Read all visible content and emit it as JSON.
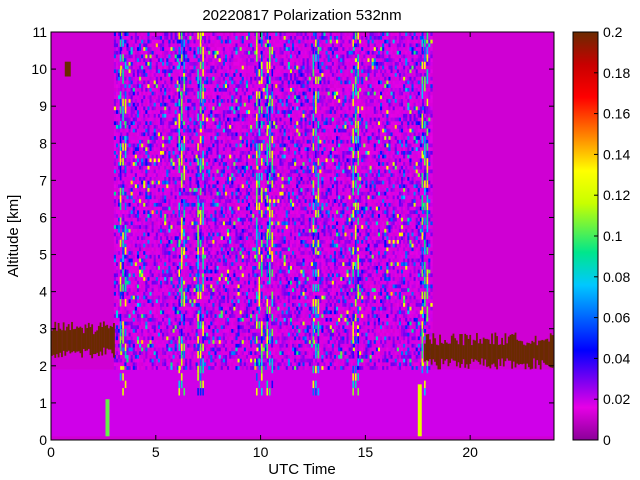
{
  "chart_data": {
    "type": "heatmap",
    "title": "20220817 Polarization 532nm",
    "xlabel": "UTC Time",
    "ylabel": "Altitude [km]",
    "xlim": [
      0,
      24
    ],
    "ylim": [
      0,
      11
    ],
    "xticks": [
      0,
      5,
      10,
      15,
      20
    ],
    "yticks": [
      0,
      1,
      2,
      3,
      4,
      5,
      6,
      7,
      8,
      9,
      10,
      11
    ],
    "colorbar": {
      "range": [
        0,
        0.2
      ],
      "ticks": [
        0,
        0.02,
        0.04,
        0.06,
        0.08,
        0.1,
        0.12,
        0.14,
        0.16,
        0.18,
        0.2
      ],
      "colormap": [
        "#8a0098",
        "#e600e6",
        "#0000ff",
        "#00c8ff",
        "#00e68c",
        "#c8ff00",
        "#ffff00",
        "#ff8c00",
        "#ff0000",
        "#c80000",
        "#6a2a00"
      ]
    },
    "field": {
      "background_value": 0.015,
      "boundary_layer_value": 0.022,
      "boundary_layer_top_km": 1.9,
      "data_window_utc": [
        3.0,
        18.1
      ],
      "sparse_column_groups_utc": [
        3.4,
        6.2,
        7.1,
        9.9,
        10.4,
        12.6,
        14.5,
        17.8
      ],
      "cloud_edge_value": 0.2,
      "cloud_edge_segments": [
        {
          "from_utc": 0.0,
          "to_utc": 3.0,
          "alt_km": 2.7
        },
        {
          "from_utc": 17.8,
          "to_utc": 24.0,
          "alt_km": 2.4
        }
      ],
      "aerosol_spot": {
        "utc": 0.8,
        "alt_km": 10.0,
        "value": 0.2
      },
      "bright_columns": [
        {
          "utc": 2.6,
          "from_km": 0.1,
          "to_km": 1.1,
          "value": 0.09
        },
        {
          "utc": 17.5,
          "from_km": 0.1,
          "to_km": 1.5,
          "value": 0.11
        }
      ]
    }
  }
}
